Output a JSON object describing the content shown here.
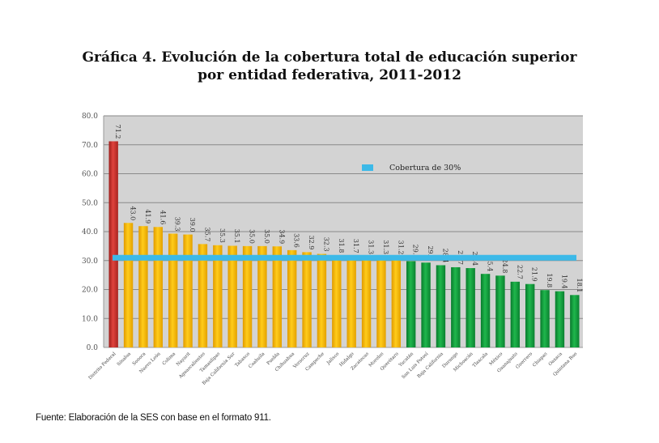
{
  "title_line1": "Gráfica 4. Evolución de la cobertura total de educación superior",
  "title_line2": "por entidad federativa, 2011-2012",
  "source": "Fuente: Elaboración de la SES con base en el formato 911.",
  "colors": {
    "plot_bg": "#d3d3d3",
    "grid": "#8a8a8a",
    "above_highest": "#c8302c",
    "above_threshold": "#f6b800",
    "below_threshold": "#0f9e3c",
    "threshold_line": "#3cb9e8"
  },
  "chart_data": {
    "type": "bar",
    "title": "Gráfica 4. Evolución de la cobertura total de educación superior por entidad federativa, 2011-2012",
    "xlabel": "",
    "ylabel": "",
    "ylim": [
      0,
      80
    ],
    "yticks": [
      "0.0",
      "10.0",
      "20.0",
      "30.0",
      "40.0",
      "50.0",
      "60.0",
      "70.0",
      "80.0"
    ],
    "grid": true,
    "categories": [
      "Distrito Federal",
      "Sinaloa",
      "Sonora",
      "Nuevo León",
      "Colima",
      "Nayarit",
      "Aguascalientes",
      "Tamaulipas",
      "Baja California Sur",
      "Tabasco",
      "Coahuila",
      "Puebla",
      "Chihuahua",
      "Veracruz",
      "Campeche",
      "Jalisco",
      "Hidalgo",
      "Zacatecas",
      "Morelos",
      "Querétaro",
      "Yucatán",
      "San Luis Potosí",
      "Baja California",
      "Durango",
      "Michoacán",
      "Tlaxcala",
      "México",
      "Guanajuato",
      "Guerrero",
      "Chiapas",
      "Oaxaca",
      "Quintana Roo"
    ],
    "values": [
      71.2,
      43.0,
      41.9,
      41.6,
      39.3,
      39.0,
      35.7,
      35.3,
      35.1,
      35.0,
      35.0,
      34.9,
      33.6,
      32.9,
      32.3,
      31.8,
      31.7,
      31.3,
      31.3,
      31.2,
      29.8,
      29.3,
      28.4,
      27.7,
      27.4,
      25.4,
      24.8,
      22.7,
      21.9,
      19.8,
      19.4,
      18.1
    ],
    "data_labels": [
      "71.2",
      "43.0",
      "41.9",
      "41.6",
      "39.3",
      "39.0",
      "35.7",
      "35.3",
      "35.1",
      "35.0",
      "35.0",
      "34.9",
      "33.6",
      "32.9",
      "32.3",
      "31.8",
      "31.7",
      "31.3",
      "31.3",
      "31.2",
      "29.8",
      "29.3",
      "28.4",
      "27.7",
      "27.4",
      "25.4",
      "24.8",
      "22.7",
      "21.9",
      "19.8",
      "19.4",
      "18.1"
    ],
    "threshold": {
      "name": "Cobertura de 30%",
      "value": 30
    },
    "legend": {
      "entries": [
        "Cobertura de 30%"
      ],
      "placement": "top-center"
    }
  }
}
